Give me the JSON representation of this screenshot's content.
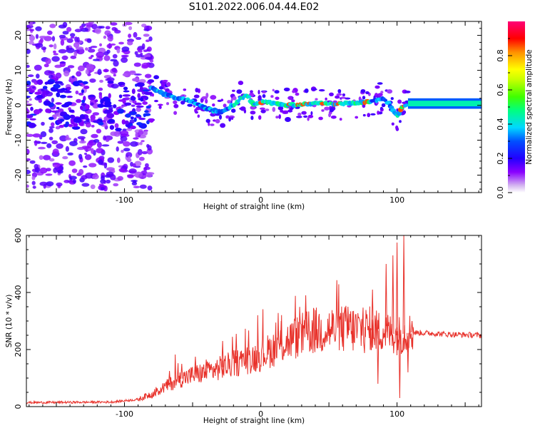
{
  "title": "S101.2022.006.04.44.E02",
  "colors": {
    "snr_line": "#e8312a",
    "axis": "#000000",
    "background": "#ffffff"
  },
  "chart_data": [
    {
      "type": "heatmap",
      "title": "S101.2022.006.04.44.E02",
      "xlabel": "Height of straight line (km)",
      "ylabel": "Frequency (Hz)",
      "xlim": [
        -172,
        162
      ],
      "ylim": [
        -25,
        24
      ],
      "x_ticks": [
        -100,
        0,
        100
      ],
      "y_ticks": [
        -20,
        -10,
        0,
        10,
        20
      ],
      "colorbar": {
        "label": "Normalized spectral amplitude",
        "range": [
          0,
          1
        ],
        "ticks": [
          "0.0",
          "0.2",
          "0.4",
          "0.6",
          "0.8"
        ],
        "colormap": [
          "#d5b8f0",
          "#8a00ff",
          "#2200ff",
          "#0050ff",
          "#00d8ff",
          "#00ff80",
          "#40ff00",
          "#c8ff00",
          "#ffff00",
          "#ff9000",
          "#ff0000",
          "#ff0077"
        ]
      },
      "ridge": {
        "x": [
          -80,
          -70,
          -60,
          -50,
          -40,
          -30,
          -20,
          -15,
          -10,
          -5,
          0,
          20,
          40,
          60,
          80,
          90,
          95,
          100,
          105,
          110,
          130,
          160
        ],
        "y": [
          5,
          3,
          2,
          1,
          -1,
          -2,
          0,
          2,
          3,
          0,
          1,
          0,
          0.5,
          0.5,
          1,
          2,
          0,
          -3,
          0,
          0,
          0.5,
          1
        ]
      },
      "grid": false
    },
    {
      "type": "line",
      "xlabel": "Height of straight line (km)",
      "ylabel": "SNR (10 * v/v)",
      "xlim": [
        -172,
        162
      ],
      "ylim": [
        0,
        600
      ],
      "x_ticks": [
        -100,
        0,
        100
      ],
      "y_ticks": [
        0,
        200,
        400,
        600
      ],
      "trend": {
        "x": [
          -172,
          -140,
          -110,
          -90,
          -80,
          -70,
          -60,
          -50,
          -40,
          -30,
          -20,
          -10,
          0,
          10,
          20,
          30,
          40,
          50,
          60,
          70,
          80,
          90,
          100,
          110,
          120,
          140,
          162
        ],
        "y": [
          14,
          15,
          16,
          25,
          45,
          70,
          95,
          110,
          120,
          135,
          150,
          165,
          180,
          205,
          230,
          250,
          265,
          270,
          272,
          270,
          268,
          265,
          250,
          260,
          258,
          253,
          250
        ]
      },
      "spikes": [
        {
          "x": -67,
          "y": 125
        },
        {
          "x": -58,
          "y": 150
        },
        {
          "x": -48,
          "y": 175
        },
        {
          "x": -40,
          "y": 165
        },
        {
          "x": -28,
          "y": 230
        },
        {
          "x": -18,
          "y": 255
        },
        {
          "x": 15,
          "y": 300
        },
        {
          "x": 33,
          "y": 390
        },
        {
          "x": 64,
          "y": 350
        },
        {
          "x": 82,
          "y": 410
        },
        {
          "x": 86,
          "y": 80
        },
        {
          "x": 92,
          "y": 500
        },
        {
          "x": 97,
          "y": 530
        },
        {
          "x": 100,
          "y": 575
        },
        {
          "x": 102,
          "y": 30
        },
        {
          "x": 105,
          "y": 600
        },
        {
          "x": 108,
          "y": 120
        },
        {
          "x": 111,
          "y": 300
        }
      ],
      "grid": false
    }
  ]
}
